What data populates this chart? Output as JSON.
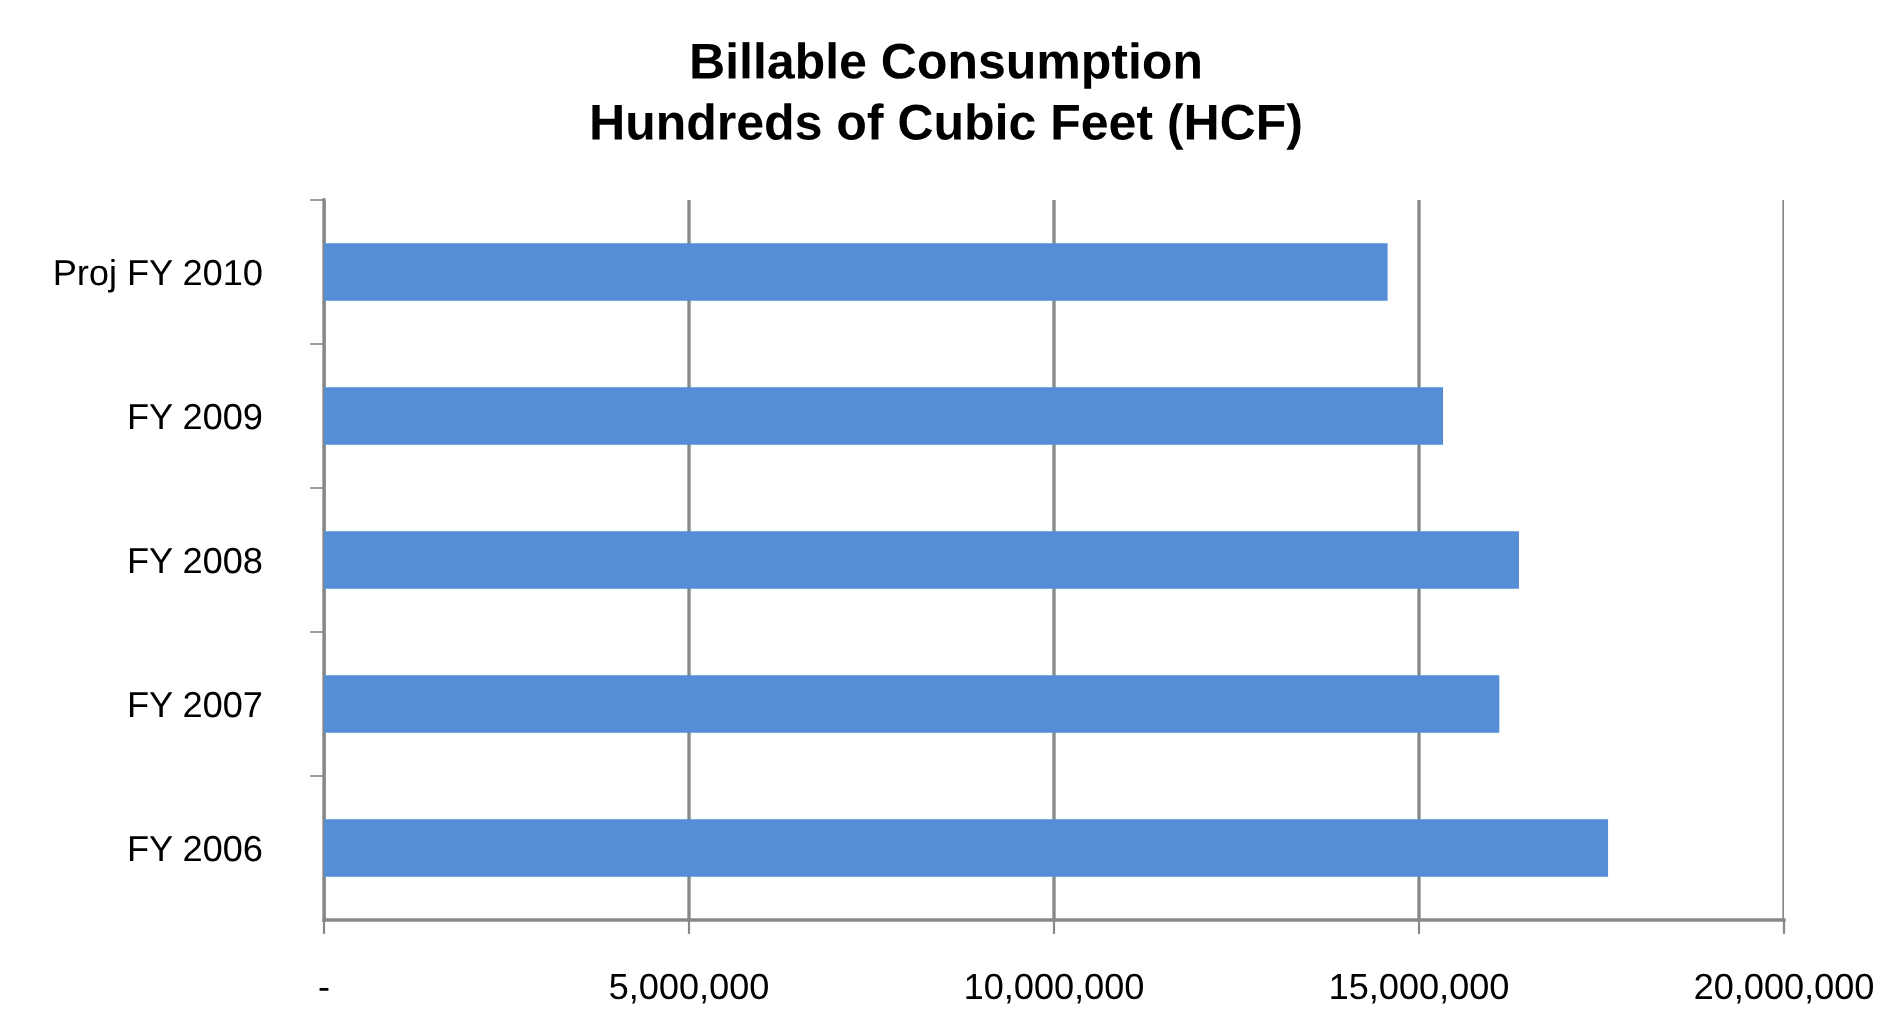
{
  "chart_data": {
    "type": "bar",
    "orientation": "horizontal",
    "title": "Billable Consumption\nHundreds of Cubic Feet (HCF)",
    "categories": [
      "Proj FY 2010",
      "FY 2009",
      "FY 2008",
      "FY 2007",
      "FY 2006"
    ],
    "values": [
      14570000,
      15330000,
      16370000,
      16100000,
      17590000
    ],
    "color": "#558ed5",
    "xlim": [
      0,
      20000000
    ],
    "xticks": [
      {
        "value": 0,
        "label": "-"
      },
      {
        "value": 5000000,
        "label": "5,000,000"
      },
      {
        "value": 10000000,
        "label": "10,000,000"
      },
      {
        "value": 15000000,
        "label": "15,000,000"
      },
      {
        "value": 20000000,
        "label": "20,000,000"
      }
    ],
    "grid": "x",
    "legend": false
  }
}
